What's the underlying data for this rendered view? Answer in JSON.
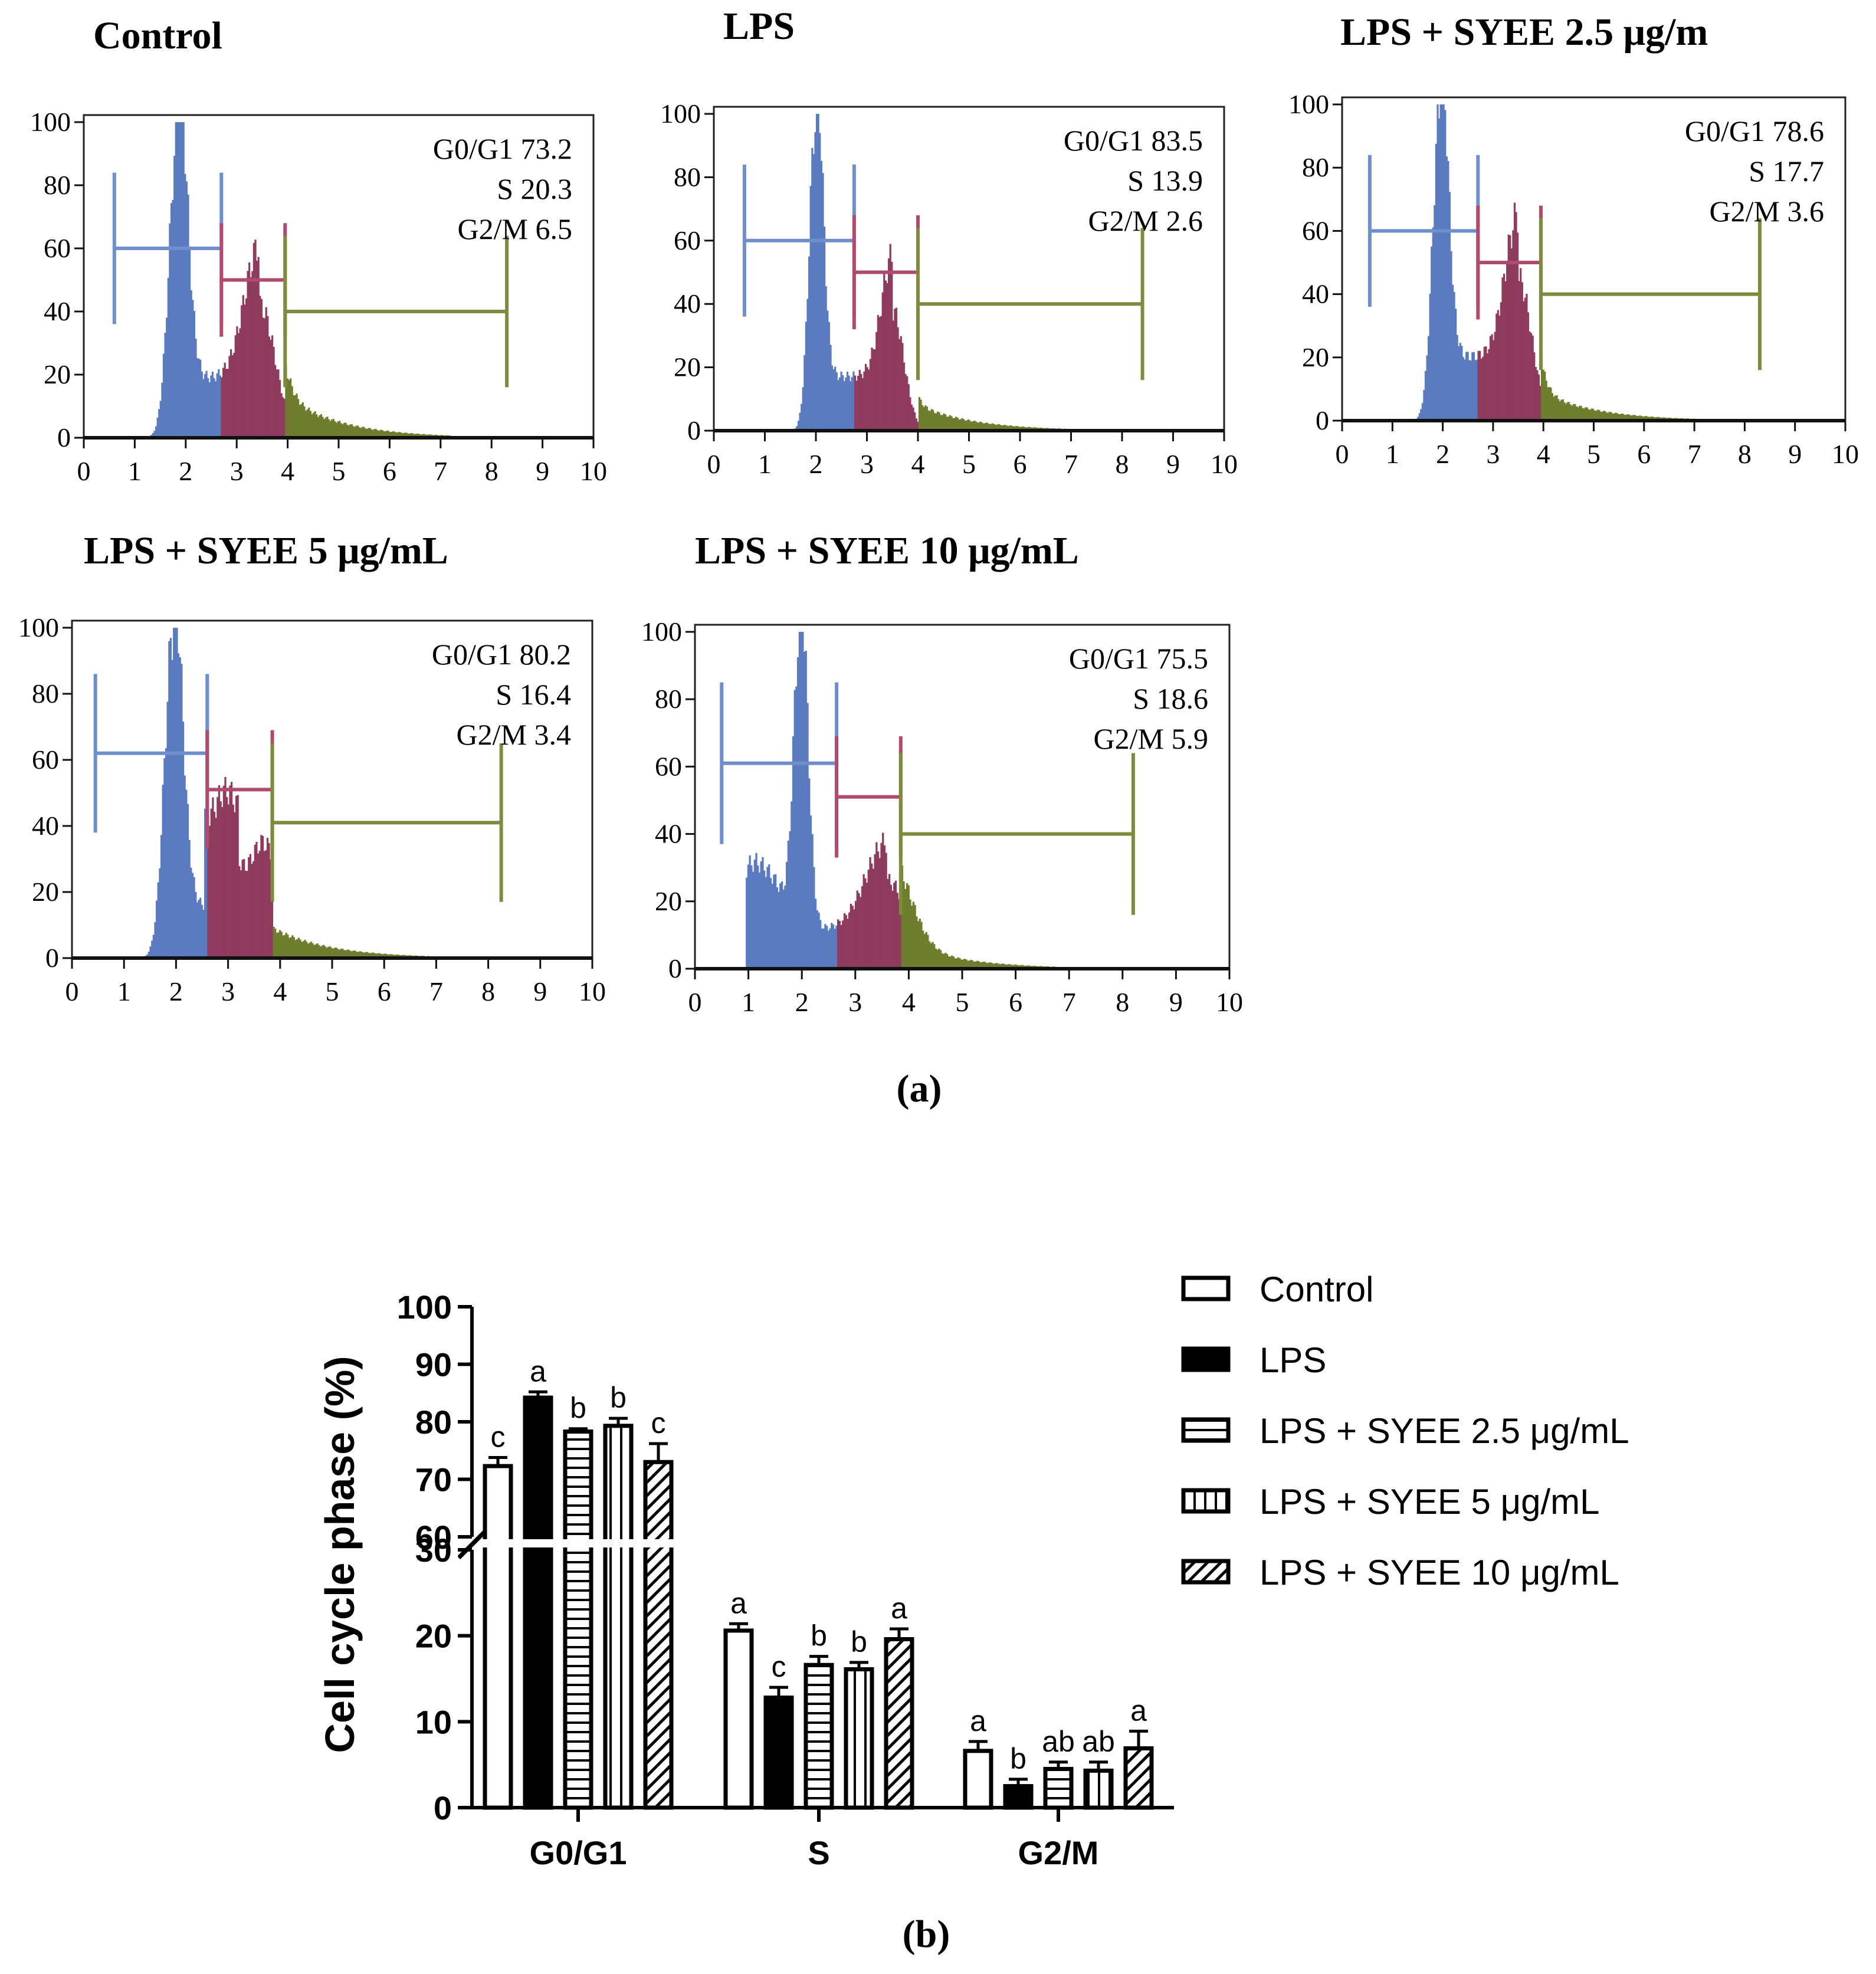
{
  "colors": {
    "g0g1": "#5B7BC0",
    "s": "#8E3B5D",
    "g2m": "#6F7E2E",
    "gate_g0g1": "#6E8FCB",
    "gate_s": "#B04A6E",
    "gate_g2m": "#7E8A3C"
  },
  "panel_a_label": "(a)",
  "panel_b_label": "(b)",
  "chart_data": [
    {
      "type": "histogram",
      "title": "Control",
      "x_ticks": [
        "0",
        "1",
        "2",
        "3",
        "4",
        "5",
        "6",
        "7",
        "8",
        "9",
        "10"
      ],
      "y_ticks": [
        "0",
        "20",
        "40",
        "60",
        "80",
        "100"
      ],
      "xlim": [
        0,
        10
      ],
      "ylim": [
        0,
        100
      ],
      "phases": [
        {
          "label": "G0/G1",
          "value": "73.2"
        },
        {
          "label": "S",
          "value": "20.3"
        },
        {
          "label": "G2/M",
          "value": "6.5"
        }
      ],
      "profile": {
        "g1": 1.85,
        "g2": 3.45,
        "g1w": 0.17,
        "g2w": 0.3,
        "g1h": 100,
        "g2h": 42,
        "sub": 0,
        "tail": 13,
        "bounds": [
          2.7,
          3.95
        ]
      },
      "gates": [
        {
          "phase": "G0/G1",
          "from": 0.6,
          "to": 2.7,
          "y": 60
        },
        {
          "phase": "S",
          "from": 2.7,
          "to": 3.95,
          "y": 50
        },
        {
          "phase": "G2/M",
          "from": 3.95,
          "to": 8.3,
          "y": 40
        }
      ]
    },
    {
      "type": "histogram",
      "title": "LPS",
      "x_ticks": [
        "0",
        "1",
        "2",
        "3",
        "4",
        "5",
        "6",
        "7",
        "8",
        "9",
        "10"
      ],
      "y_ticks": [
        "0",
        "20",
        "40",
        "60",
        "80",
        "100"
      ],
      "xlim": [
        0,
        10
      ],
      "ylim": [
        0,
        100
      ],
      "phases": [
        {
          "label": "G0/G1",
          "value": "83.5"
        },
        {
          "label": "S",
          "value": "13.9"
        },
        {
          "label": "G2/M",
          "value": "2.6"
        }
      ],
      "profile": {
        "g1": 2.0,
        "g2": 3.5,
        "g1w": 0.13,
        "g2w": 0.22,
        "g1h": 100,
        "g2h": 38,
        "sub": 0,
        "tail": 8,
        "bounds": [
          2.75,
          4.0
        ]
      },
      "gates": [
        {
          "phase": "G0/G1",
          "from": 0.6,
          "to": 2.75,
          "y": 60
        },
        {
          "phase": "S",
          "from": 2.75,
          "to": 4.0,
          "y": 50
        },
        {
          "phase": "G2/M",
          "from": 4.0,
          "to": 8.4,
          "y": 40
        }
      ]
    },
    {
      "type": "histogram",
      "title": "LPS + SYEE 2.5 μg/m",
      "x_ticks": [
        "0",
        "1",
        "2",
        "3",
        "4",
        "5",
        "6",
        "7",
        "8",
        "9",
        "10"
      ],
      "y_ticks": [
        "0",
        "20",
        "40",
        "60",
        "80",
        "100"
      ],
      "xlim": [
        0,
        10
      ],
      "ylim": [
        0,
        100
      ],
      "phases": [
        {
          "label": "G0/G1",
          "value": "78.6"
        },
        {
          "label": "S",
          "value": "17.7"
        },
        {
          "label": "G2/M",
          "value": "3.6"
        }
      ],
      "profile": {
        "g1": 1.95,
        "g2": 3.5,
        "g1w": 0.15,
        "g2w": 0.26,
        "g1h": 100,
        "g2h": 45,
        "sub": 0,
        "tail": 9,
        "bounds": [
          2.7,
          3.95
        ]
      },
      "gates": [
        {
          "phase": "G0/G1",
          "from": 0.55,
          "to": 2.7,
          "y": 60
        },
        {
          "phase": "S",
          "from": 2.7,
          "to": 3.95,
          "y": 50
        },
        {
          "phase": "G2/M",
          "from": 3.95,
          "to": 8.3,
          "y": 40
        }
      ]
    },
    {
      "type": "histogram",
      "title": "LPS + SYEE 5 μg/mL",
      "x_ticks": [
        "0",
        "1",
        "2",
        "3",
        "4",
        "5",
        "6",
        "7",
        "8",
        "9",
        "10"
      ],
      "y_ticks": [
        "0",
        "20",
        "40",
        "60",
        "80",
        "100"
      ],
      "xlim": [
        0,
        10
      ],
      "ylim": [
        0,
        100
      ],
      "phases": [
        {
          "label": "G0/G1",
          "value": "80.2"
        },
        {
          "label": "S",
          "value": "16.4"
        },
        {
          "label": "G2/M",
          "value": "3.4"
        }
      ],
      "profile": {
        "g1": 1.95,
        "g2": 3.2,
        "g1w": 0.17,
        "g2w": 0.55,
        "g1h": 100,
        "g2h": 35,
        "sub": 0,
        "tail": 9,
        "bounds": [
          2.6,
          3.85
        ],
        "flat_s": true
      },
      "gates": [
        {
          "phase": "G0/G1",
          "from": 0.45,
          "to": 2.6,
          "y": 62
        },
        {
          "phase": "S",
          "from": 2.6,
          "to": 3.85,
          "y": 51
        },
        {
          "phase": "G2/M",
          "from": 3.85,
          "to": 8.25,
          "y": 41
        }
      ]
    },
    {
      "type": "histogram",
      "title": "LPS + SYEE 10 μg/mL",
      "x_ticks": [
        "0",
        "1",
        "2",
        "3",
        "4",
        "5",
        "6",
        "7",
        "8",
        "9",
        "10"
      ],
      "y_ticks": [
        "0",
        "20",
        "40",
        "60",
        "80",
        "100"
      ],
      "xlim": [
        0,
        10
      ],
      "ylim": [
        0,
        100
      ],
      "phases": [
        {
          "label": "G0/G1",
          "value": "75.5"
        },
        {
          "label": "S",
          "value": "18.6"
        },
        {
          "label": "G2/M",
          "value": "5.9"
        }
      ],
      "profile": {
        "g1": 1.98,
        "g2": 3.6,
        "g1w": 0.13,
        "g2w": 0.4,
        "g1h": 100,
        "g2h": 26,
        "sub": 30,
        "tail": 8,
        "bounds": [
          2.65,
          3.85
        ]
      },
      "gates": [
        {
          "phase": "G0/G1",
          "from": 0.5,
          "to": 2.65,
          "y": 61
        },
        {
          "phase": "S",
          "from": 2.65,
          "to": 3.85,
          "y": 51
        },
        {
          "phase": "G2/M",
          "from": 3.85,
          "to": 8.2,
          "y": 40
        }
      ]
    },
    {
      "type": "bar",
      "ylabel": "Cell cycle phase (%)",
      "categories": [
        "G0/G1",
        "S",
        "G2/M"
      ],
      "y_ticks_upper": [
        "60",
        "70",
        "80",
        "90",
        "100"
      ],
      "y_ticks_lower": [
        "0",
        "10",
        "20",
        "30"
      ],
      "ylim_lower": [
        0,
        30
      ],
      "ylim_upper": [
        60,
        100
      ],
      "series": [
        {
          "name": "Control",
          "pattern": "open",
          "values": [
            72.3,
            20.6,
            6.6
          ],
          "errors": [
            1.5,
            0.8,
            1.1
          ],
          "letters": [
            "c",
            "a",
            "a"
          ]
        },
        {
          "name": "LPS",
          "pattern": "solid",
          "values": [
            84.2,
            12.8,
            2.5
          ],
          "errors": [
            1.0,
            1.2,
            0.8
          ],
          "letters": [
            "a",
            "c",
            "b"
          ]
        },
        {
          "name": "LPS + SYEE 2.5 μg/mL",
          "pattern": "hlines",
          "values": [
            78.3,
            16.6,
            4.5
          ],
          "errors": [
            0.5,
            1.0,
            0.8
          ],
          "letters": [
            "b",
            "b",
            "ab"
          ]
        },
        {
          "name": "LPS + SYEE 5 μg/mL",
          "pattern": "vlines",
          "values": [
            79.3,
            16.1,
            4.3
          ],
          "errors": [
            1.3,
            0.8,
            1.0
          ],
          "letters": [
            "b",
            "b",
            "ab"
          ]
        },
        {
          "name": "LPS + SYEE 10 μg/mL",
          "pattern": "diag",
          "values": [
            73.0,
            19.6,
            6.9
          ],
          "errors": [
            3.2,
            1.2,
            2.0
          ],
          "letters": [
            "c",
            "a",
            "a"
          ]
        }
      ]
    }
  ]
}
